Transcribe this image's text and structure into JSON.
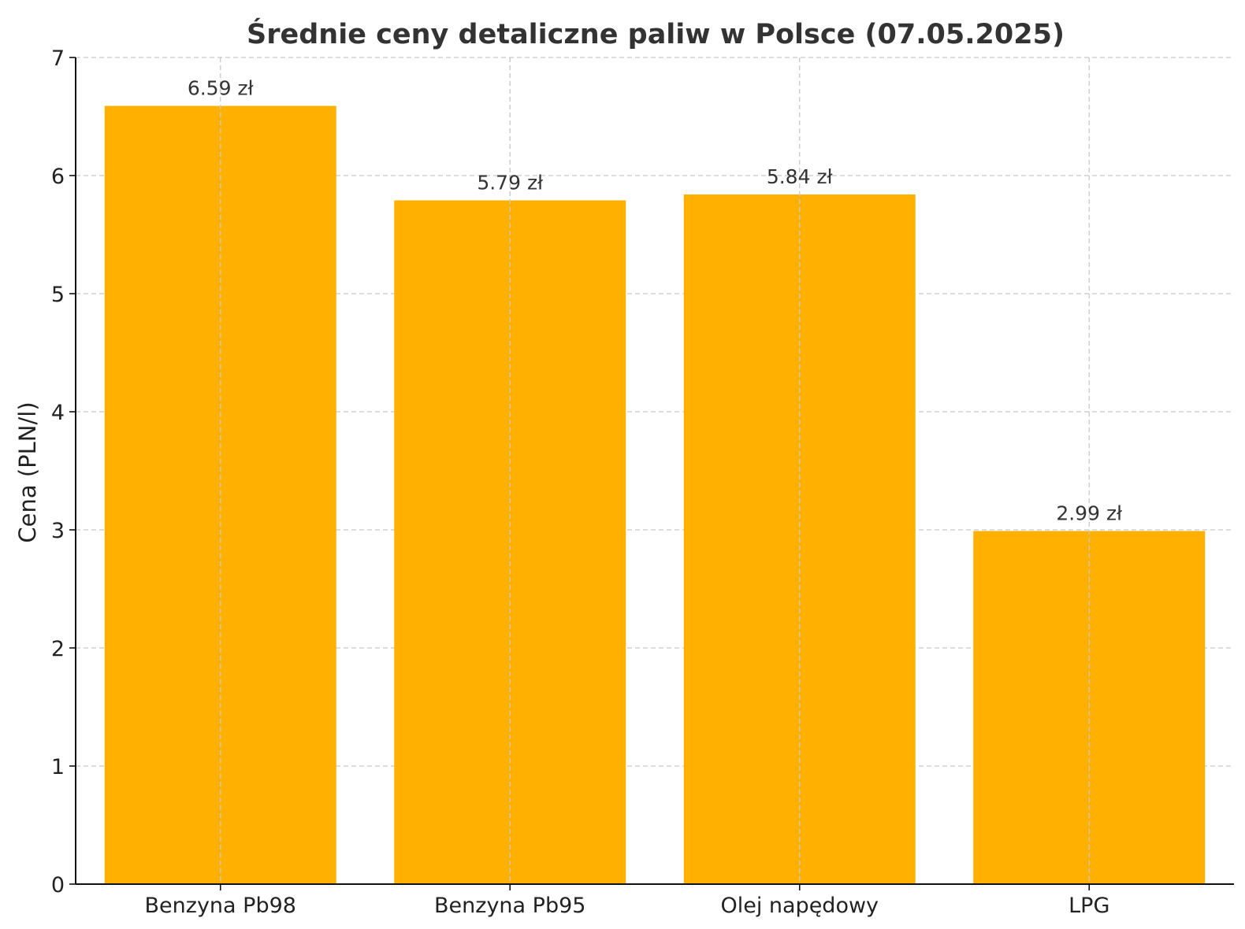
{
  "chart_data": {
    "type": "bar",
    "title": "Średnie ceny detaliczne paliw w Polsce (07.05.2025)",
    "ylabel": "Cena (PLN/l)",
    "xlabel": "",
    "categories": [
      "Benzyna Pb98",
      "Benzyna Pb95",
      "Olej napędowy",
      "LPG"
    ],
    "values": [
      6.59,
      5.79,
      5.84,
      2.99
    ],
    "data_labels": [
      "6.59 zł",
      "5.79 zł",
      "5.84 zł",
      "2.99 zł"
    ],
    "ylim": [
      0,
      7
    ],
    "yticks": [
      0,
      1,
      2,
      3,
      4,
      5,
      6,
      7
    ],
    "grid": true,
    "bar_color": "#FFB000"
  }
}
